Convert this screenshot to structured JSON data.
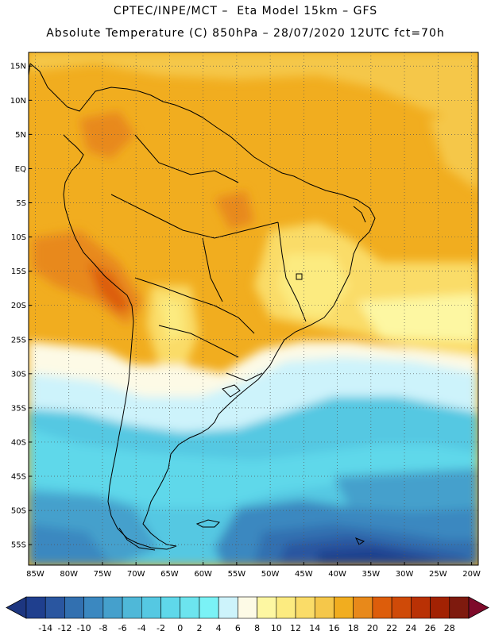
{
  "header": {
    "line1": "CPTEC/INPE/MCT –  Eta Model 15km – GFS",
    "line2": "Absolute Temperature (C) 850hPa – 28/07/2020 12UTC fct=70h"
  },
  "map": {
    "lon_range": [
      -86,
      -19
    ],
    "lat_range": [
      -58,
      17
    ],
    "lat_ticks": [
      {
        "value": 15,
        "label": "15N"
      },
      {
        "value": 10,
        "label": "10N"
      },
      {
        "value": 5,
        "label": "5N"
      },
      {
        "value": 0,
        "label": "EQ"
      },
      {
        "value": -5,
        "label": "5S"
      },
      {
        "value": -10,
        "label": "10S"
      },
      {
        "value": -15,
        "label": "15S"
      },
      {
        "value": -20,
        "label": "20S"
      },
      {
        "value": -25,
        "label": "25S"
      },
      {
        "value": -30,
        "label": "30S"
      },
      {
        "value": -35,
        "label": "35S"
      },
      {
        "value": -40,
        "label": "40S"
      },
      {
        "value": -45,
        "label": "45S"
      },
      {
        "value": -50,
        "label": "50S"
      },
      {
        "value": -55,
        "label": "55S"
      }
    ],
    "lon_ticks": [
      {
        "value": -85,
        "label": "85W"
      },
      {
        "value": -80,
        "label": "80W"
      },
      {
        "value": -75,
        "label": "75W"
      },
      {
        "value": -70,
        "label": "70W"
      },
      {
        "value": -65,
        "label": "65W"
      },
      {
        "value": -60,
        "label": "60W"
      },
      {
        "value": -55,
        "label": "55W"
      },
      {
        "value": -50,
        "label": "50W"
      },
      {
        "value": -45,
        "label": "45W"
      },
      {
        "value": -40,
        "label": "40W"
      },
      {
        "value": -35,
        "label": "35W"
      },
      {
        "value": -30,
        "label": "30W"
      },
      {
        "value": -25,
        "label": "25W"
      },
      {
        "value": -20,
        "label": "20W"
      }
    ],
    "gridlines": true
  },
  "colorbar": {
    "labels": [
      "-14",
      "-12",
      "-10",
      "-8",
      "-6",
      "-4",
      "-2",
      "0",
      "2",
      "4",
      "6",
      "8",
      "10",
      "12",
      "14",
      "16",
      "18",
      "20",
      "22",
      "24",
      "26",
      "28"
    ],
    "colors": [
      "#1f3f8e",
      "#2a56a0",
      "#3270b0",
      "#3b88c0",
      "#45a0cc",
      "#4fb8d8",
      "#55c8e2",
      "#5fd8ea",
      "#6ce4ee",
      "#7af2f6",
      "#cdf3fb",
      "#fdfae6",
      "#fdf7a2",
      "#fceb80",
      "#fadc68",
      "#f5c74a",
      "#f1ad1f",
      "#e8891a",
      "#dd5d0b",
      "#cf4a08",
      "#b93105",
      "#a22203",
      "#7e1a0e"
    ],
    "under_color": "#1d3680",
    "over_color": "#7e0a2a"
  }
}
